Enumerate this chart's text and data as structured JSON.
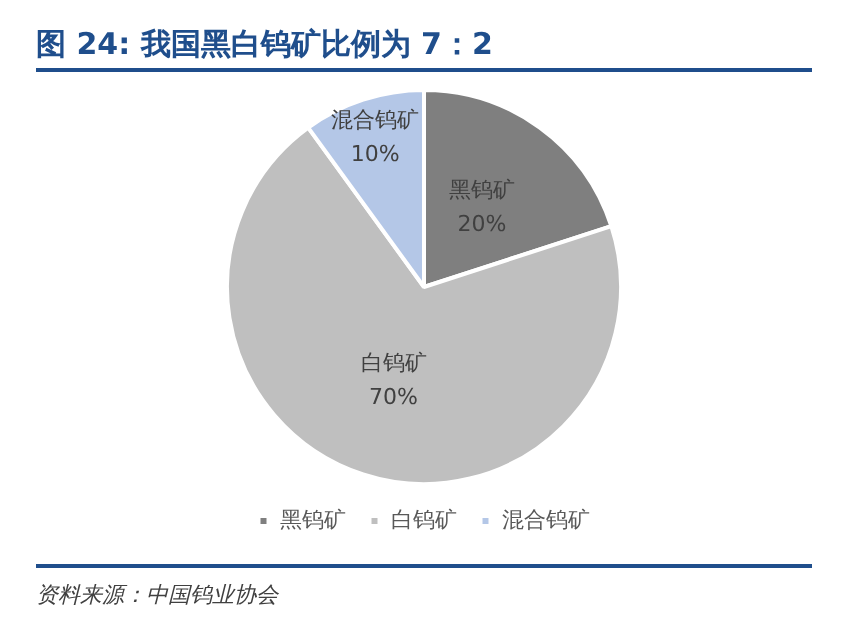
{
  "chart_data": {
    "type": "pie",
    "title": "图 24: 我国黑白钨矿比例为 7：2",
    "categories": [
      "黑钨矿",
      "白钨矿",
      "混合钨矿"
    ],
    "values": [
      20,
      70,
      10
    ],
    "value_labels": [
      "20%",
      "70%",
      "10%"
    ],
    "colors": [
      "#7f7f7f",
      "#bfbfbf",
      "#b4c7e7"
    ],
    "legend": "bottom",
    "annotations": [
      "资料来源：中国钨业协会"
    ]
  }
}
